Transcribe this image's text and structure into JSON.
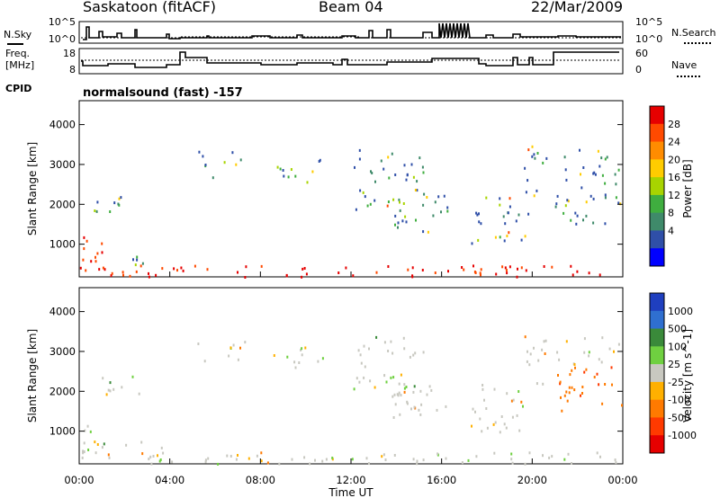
{
  "header": {
    "station": "Saskatoon (fitACF)",
    "beam": "Beam 04",
    "date": "22/Mar/2009"
  },
  "panel_nsky": {
    "left_label": "N.Sky",
    "right_label": "N.Search",
    "left_ticks": [
      "10^5",
      "10^0"
    ],
    "right_ticks": [
      "10^5",
      "10^0"
    ]
  },
  "panel_freq": {
    "left_label_1": "Freq.",
    "left_label_2": "[MHz]",
    "left_ticks": [
      "18",
      "8"
    ],
    "right_ticks": [
      "60",
      "0"
    ],
    "right_label": "Nave",
    "cpid_label": "CPID",
    "cpid_text": "normalsound (fast) -157"
  },
  "chart_data": [
    {
      "type": "heatmap",
      "name": "power",
      "ylabel": "Slant Range [km]",
      "y_ticks": [
        "4000",
        "3000",
        "2000",
        "1000"
      ],
      "y_tick_values": [
        4000,
        3000,
        2000,
        1000
      ],
      "ylim": [
        180,
        4600
      ],
      "colorbar_label": "Power [dB]",
      "colorbar_ticks": [
        "28",
        "24",
        "20",
        "16",
        "12",
        "8",
        "4"
      ],
      "colorbar_colors": [
        "#e60000",
        "#ff4a00",
        "#ff8c00",
        "#ffcc00",
        "#a8d400",
        "#3fae3f",
        "#3f8a6a",
        "#2f4fa8",
        "#0000ff"
      ]
    },
    {
      "type": "heatmap",
      "name": "velocity",
      "ylabel": "Slant Range [km]",
      "y_ticks": [
        "4000",
        "3000",
        "2000",
        "1000"
      ],
      "y_tick_values": [
        4000,
        3000,
        2000,
        1000
      ],
      "ylim": [
        180,
        4600
      ],
      "colorbar_label": "Velocity [m s^-1]",
      "colorbar_ticks": [
        "1000",
        "500",
        "100",
        "25",
        "-25",
        "-100",
        "-500",
        "-1000"
      ],
      "colorbar_colors": [
        "#1f3fbf",
        "#2f6fd0",
        "#3a8a3a",
        "#6fd040",
        "#c8c8c0",
        "#ffb000",
        "#ff7a00",
        "#ff3a00",
        "#e60000"
      ]
    }
  ],
  "time_axis": {
    "label": "Time UT",
    "ticks": [
      "00:00",
      "04:00",
      "08:00",
      "12:00",
      "16:00",
      "20:00",
      "00:00"
    ],
    "tick_hours": [
      0,
      4,
      8,
      12,
      16,
      20,
      24
    ]
  }
}
